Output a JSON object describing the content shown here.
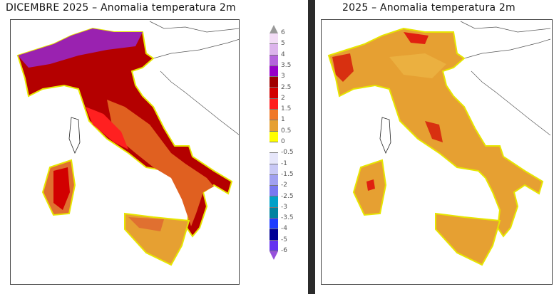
{
  "left_map": {
    "title": "DICEMBRE 2025 – Anomalia temperatura 2m",
    "base_color": "#b40000"
  },
  "right_map": {
    "title": "2025 – Anomalia temperatura 2m",
    "base_color": "#e6a032"
  },
  "legend": {
    "labels": [
      "6",
      "5",
      "4",
      "3.5",
      "3",
      "2.5",
      "2",
      "1.5",
      "1",
      "0.5",
      "0",
      "-0.5",
      "-1",
      "-1.5",
      "-2",
      "-2.5",
      "-3",
      "-3.5",
      "-4",
      "-5",
      "-6"
    ],
    "colors": [
      "#f2dcf6",
      "#dcb4ec",
      "#b464dc",
      "#9600c8",
      "#a00000",
      "#d20000",
      "#ff1e1e",
      "#f07828",
      "#e6a032",
      "#ffff00",
      "#ffffff",
      "#e6e6fa",
      "#c8c8f5",
      "#a0a0f0",
      "#7878f0",
      "#00a0c8",
      "#0082a0",
      "#1e3cff",
      "#000096",
      "#6432f0"
    ],
    "top_arrow_color": "#999999",
    "bottom_arrow_color": "#9650dc"
  }
}
